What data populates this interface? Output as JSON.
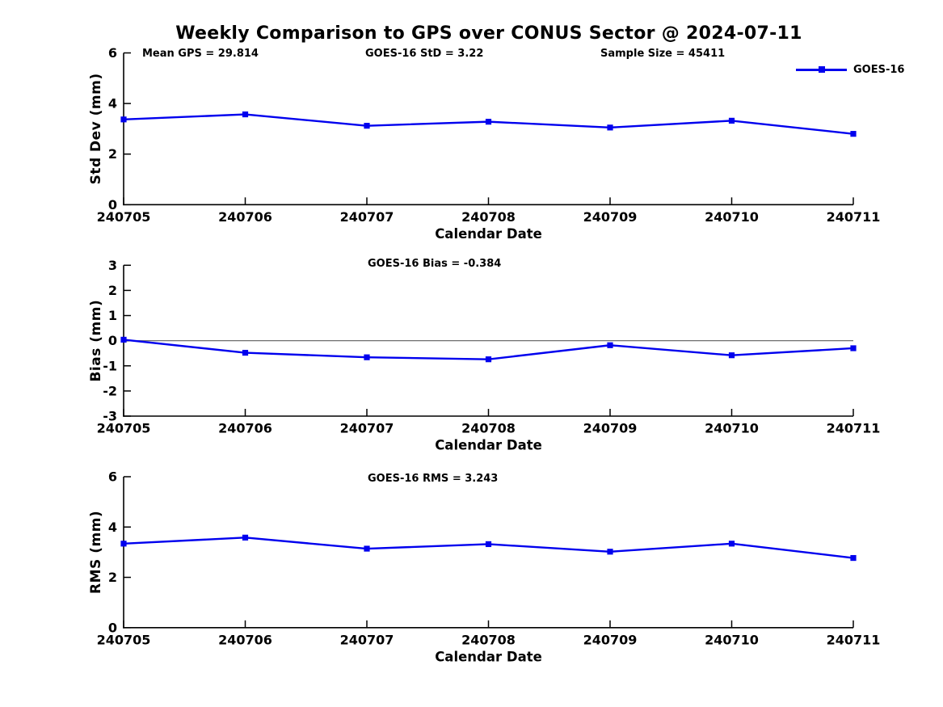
{
  "title": "Weekly Comparison to GPS over CONUS Sector @ 2024-07-11",
  "legend": {
    "label": "GOES-16"
  },
  "colors": {
    "series": "#0000EE",
    "zero_line": "#6e6e6e",
    "axis": "#000000"
  },
  "chart_data": [
    {
      "type": "line",
      "name": "std-dev",
      "series_name": "GOES-16",
      "title": "",
      "xlabel": "Calendar Date",
      "ylabel": "Std Dev (mm)",
      "categories": [
        "240705",
        "240706",
        "240707",
        "240708",
        "240709",
        "240710",
        "240711"
      ],
      "values": [
        3.37,
        3.57,
        3.12,
        3.28,
        3.05,
        3.32,
        2.8
      ],
      "ylim": [
        0,
        6
      ],
      "yticks": [
        0,
        2,
        4,
        6
      ],
      "grid": false,
      "legend_position": "top-right",
      "zero_line": false,
      "annotations": [
        {
          "text": "Mean GPS = 29.814"
        },
        {
          "text": "GOES-16 StD = 3.22"
        },
        {
          "text": "Sample Size = 45411"
        }
      ]
    },
    {
      "type": "line",
      "name": "bias",
      "series_name": "GOES-16",
      "title": "",
      "xlabel": "Calendar Date",
      "ylabel": "Bias (mm)",
      "categories": [
        "240705",
        "240706",
        "240707",
        "240708",
        "240709",
        "240710",
        "240711"
      ],
      "values": [
        0.04,
        -0.48,
        -0.66,
        -0.74,
        -0.18,
        -0.58,
        -0.3
      ],
      "ylim": [
        -3,
        3
      ],
      "yticks": [
        -3,
        -2,
        -1,
        0,
        1,
        2,
        3
      ],
      "grid": false,
      "zero_line": true,
      "annotations": [
        {
          "text": "GOES-16 Bias  = -0.384"
        }
      ]
    },
    {
      "type": "line",
      "name": "rms",
      "series_name": "GOES-16",
      "title": "",
      "xlabel": "Calendar Date",
      "ylabel": "RMS (mm)",
      "categories": [
        "240705",
        "240706",
        "240707",
        "240708",
        "240709",
        "240710",
        "240711"
      ],
      "values": [
        3.34,
        3.58,
        3.14,
        3.32,
        3.02,
        3.34,
        2.77
      ],
      "ylim": [
        0,
        6
      ],
      "yticks": [
        0,
        2,
        4,
        6
      ],
      "grid": false,
      "zero_line": false,
      "annotations": [
        {
          "text": "GOES-16 RMS = 3.243"
        }
      ]
    }
  ]
}
